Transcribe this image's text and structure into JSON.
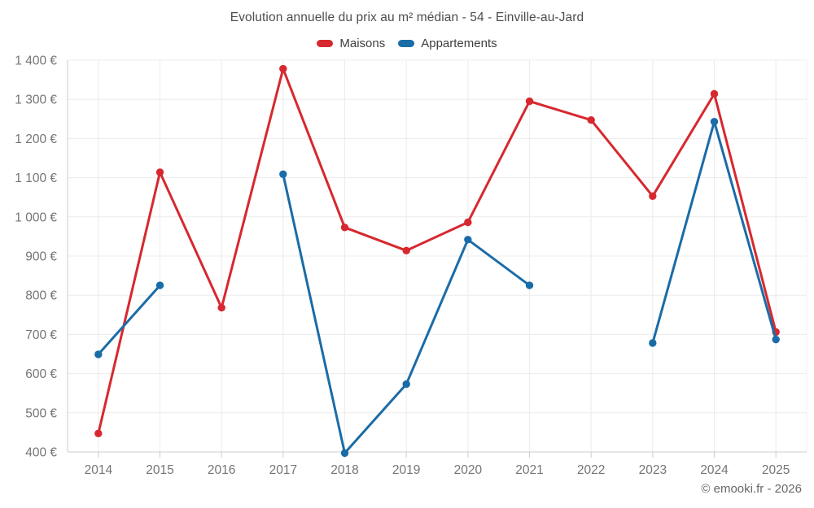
{
  "header": {
    "title": "Evolution annuelle du prix au m² médian - 54 - Einville-au-Jard"
  },
  "legend": {
    "items": [
      {
        "label": "Maisons",
        "color": "#d7282f"
      },
      {
        "label": "Appartements",
        "color": "#1a6ca8"
      }
    ]
  },
  "footer": {
    "credit": "© emooki.fr - 2026"
  },
  "colors": {
    "background": "#ffffff",
    "grid": "#ececec",
    "axis": "#cccccc",
    "tick_label": "#757575",
    "title_text": "#4d4d4d",
    "legend_text": "#3e3e3e",
    "footer_text": "#686868",
    "maisons": "#d7282f",
    "appartements": "#1a6ca8"
  },
  "chart_data": {
    "type": "line",
    "title": "Evolution annuelle du prix au m² médian - 54 - Einville-au-Jard",
    "categories": [
      "2014",
      "2015",
      "2016",
      "2017",
      "2018",
      "2019",
      "2020",
      "2021",
      "2022",
      "2023",
      "2024",
      "2025"
    ],
    "series": [
      {
        "name": "Maisons",
        "color": "#d7282f",
        "values": [
          447,
          1114,
          768,
          1378,
          973,
          914,
          986,
          1295,
          1247,
          1053,
          1314,
          706
        ]
      },
      {
        "name": "Appartements",
        "color": "#1a6ca8",
        "values": [
          649,
          825,
          null,
          1109,
          397,
          573,
          942,
          825,
          null,
          678,
          1243,
          687
        ]
      }
    ],
    "xlabel": "",
    "ylabel": "",
    "unit": "€",
    "ylim": [
      400,
      1400
    ],
    "ytick_step": 100,
    "ytick_labels": [
      "400 €",
      "500 €",
      "600 €",
      "700 €",
      "800 €",
      "900 €",
      "1 000 €",
      "1 100 €",
      "1 200 €",
      "1 300 €",
      "1 400 €"
    ],
    "grid": true,
    "legend_position": "top",
    "marker_style": "circle",
    "gaps_in_series": {
      "Appartements": [
        "2016",
        "2022"
      ]
    }
  }
}
